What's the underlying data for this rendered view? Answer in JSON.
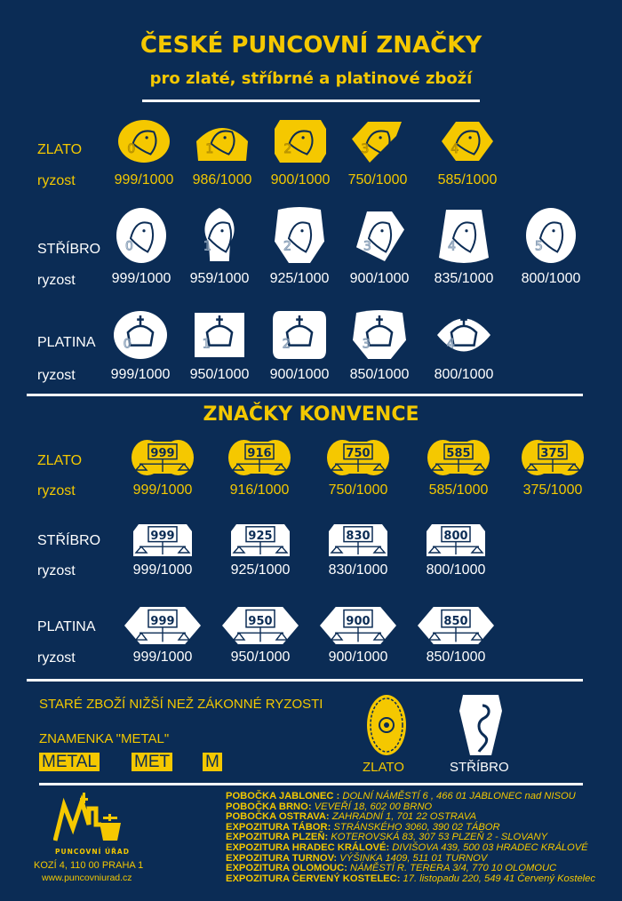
{
  "title": "ČESKÉ PUNCOVNÍ ZNAČKY",
  "subtitle": "pro zlaté, stříbrné a platinové zboží",
  "colors": {
    "background": "#0b2c55",
    "gold": "#f5c800",
    "silver": "#ffffff"
  },
  "czech": {
    "ryzost_label": "ryzost",
    "gold": {
      "label": "ZLATO",
      "marks": [
        {
          "num": "0",
          "fineness": "999/1000",
          "icon": "eagle-icon"
        },
        {
          "num": "1",
          "fineness": "986/1000",
          "icon": "eagle-icon"
        },
        {
          "num": "2",
          "fineness": "900/1000",
          "icon": "eagle-icon"
        },
        {
          "num": "3",
          "fineness": "750/1000",
          "icon": "rooster-icon"
        },
        {
          "num": "4",
          "fineness": "585/1000",
          "icon": "duck-icon"
        }
      ]
    },
    "silver": {
      "label": "STŘÍBRO",
      "marks": [
        {
          "num": "0",
          "fineness": "999/1000",
          "icon": "goat-icon"
        },
        {
          "num": "1",
          "fineness": "959/1000",
          "icon": "goat-icon"
        },
        {
          "num": "2",
          "fineness": "925/1000",
          "icon": "goat-icon"
        },
        {
          "num": "3",
          "fineness": "900/1000",
          "icon": "hare-icon"
        },
        {
          "num": "4",
          "fineness": "835/1000",
          "icon": "hare-icon"
        },
        {
          "num": "5",
          "fineness": "800/1000",
          "icon": "hare-icon"
        }
      ]
    },
    "platinum": {
      "label": "PLATINA",
      "marks": [
        {
          "num": "0",
          "fineness": "999/1000",
          "icon": "crown-icon"
        },
        {
          "num": "1",
          "fineness": "950/1000",
          "icon": "crown-icon"
        },
        {
          "num": "2",
          "fineness": "900/1000",
          "icon": "crown-icon"
        },
        {
          "num": "3",
          "fineness": "850/1000",
          "icon": "crown-icon"
        },
        {
          "num": "4",
          "fineness": "800/1000",
          "icon": "crown-icon"
        }
      ]
    }
  },
  "convention": {
    "title": "ZNAČKY KONVENCE",
    "ryzost_label": "ryzost",
    "gold": {
      "label": "ZLATO",
      "marks": [
        {
          "num": "999",
          "fineness": "999/1000"
        },
        {
          "num": "916",
          "fineness": "916/1000"
        },
        {
          "num": "750",
          "fineness": "750/1000"
        },
        {
          "num": "585",
          "fineness": "585/1000"
        },
        {
          "num": "375",
          "fineness": "375/1000"
        }
      ]
    },
    "silver": {
      "label": "STŘÍBRO",
      "marks": [
        {
          "num": "999",
          "fineness": "999/1000"
        },
        {
          "num": "925",
          "fineness": "925/1000"
        },
        {
          "num": "830",
          "fineness": "830/1000"
        },
        {
          "num": "800",
          "fineness": "800/1000"
        }
      ]
    },
    "platinum": {
      "label": "PLATINA",
      "marks": [
        {
          "num": "999",
          "fineness": "999/1000"
        },
        {
          "num": "950",
          "fineness": "950/1000"
        },
        {
          "num": "900",
          "fineness": "900/1000"
        },
        {
          "num": "850",
          "fineness": "850/1000"
        }
      ]
    }
  },
  "old_goods": {
    "title": "STARÉ ZBOŽÍ NIŽŠÍ NEŽ ZÁKONNÉ RYZOSTI",
    "metal_title": "ZNAMENKA \"METAL\"",
    "metal_marks": [
      "METAL",
      "MET",
      "M"
    ],
    "gold_label": "ZLATO",
    "silver_label": "STŘÍBRO"
  },
  "footer": {
    "logo_text": "PUNCOVNÍ ÚŘAD",
    "address": "KOZÍ 4, 110 00 PRAHA 1",
    "website": "www.puncovniurad.cz",
    "branches": [
      {
        "name": "POBOČKA JABLONEC :",
        "addr": "DOLNÍ NÁMĚSTÍ 6 , 466 01 JABLONEC nad NISOU"
      },
      {
        "name": "POBOČKA BRNO:",
        "addr": "VEVEŘÍ 18, 602 00 BRNO"
      },
      {
        "name": "POBOČKA OSTRAVA:",
        "addr": "ZAHRADNÍ 1, 701 22 OSTRAVA"
      },
      {
        "name": "EXPOZITURA TÁBOR:",
        "addr": "STRÁNSKÉHO 3060, 390 02 TÁBOR"
      },
      {
        "name": "EXPOZITURA PLZEŇ:",
        "addr": "KOTEROVSKÁ 83, 307 53 PLZEŇ 2 - SLOVANY"
      },
      {
        "name": "EXPOZITURA HRADEC KRÁLOVÉ:",
        "addr": "DIVIŠOVA 439, 500 03 HRADEC KRÁLOVÉ"
      },
      {
        "name": "EXPOZITURA TURNOV:",
        "addr": "VÝŠINKA 1409, 511 01 TURNOV"
      },
      {
        "name": "EXPOZITURA OLOMOUC:",
        "addr": "NÁMĚSTÍ R. TERERA 3/4, 770 10 OLOMOUC"
      },
      {
        "name": "EXPOZITURA ČERVENÝ KOSTELEC:",
        "addr": "17. listopadu 220, 549 41 Červený Kostelec"
      }
    ]
  }
}
